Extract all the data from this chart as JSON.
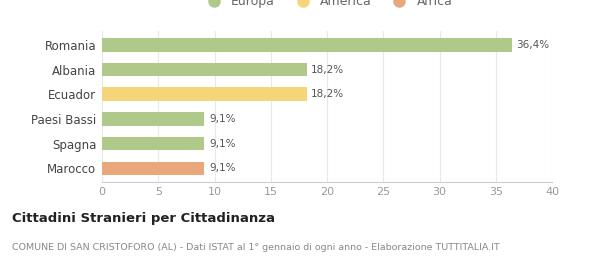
{
  "categories": [
    "Romania",
    "Albania",
    "Ecuador",
    "Paesi Bassi",
    "Spagna",
    "Marocco"
  ],
  "values": [
    36.4,
    18.2,
    18.2,
    9.1,
    9.1,
    9.1
  ],
  "labels": [
    "36,4%",
    "18,2%",
    "18,2%",
    "9,1%",
    "9,1%",
    "9,1%"
  ],
  "bar_colors": [
    "#aec98a",
    "#aec98a",
    "#f5d57a",
    "#aec98a",
    "#aec98a",
    "#e8a87c"
  ],
  "legend_items": [
    {
      "label": "Europa",
      "color": "#aec98a"
    },
    {
      "label": "America",
      "color": "#f5d57a"
    },
    {
      "label": "Africa",
      "color": "#e8a87c"
    }
  ],
  "xlim": [
    0,
    40
  ],
  "xticks": [
    0,
    5,
    10,
    15,
    20,
    25,
    30,
    35,
    40
  ],
  "title": "Cittadini Stranieri per Cittadinanza",
  "subtitle": "COMUNE DI SAN CRISTOFORO (AL) - Dati ISTAT al 1° gennaio di ogni anno - Elaborazione TUTTITALIA.IT",
  "background_color": "#ffffff",
  "grid_color": "#e8e8e8"
}
